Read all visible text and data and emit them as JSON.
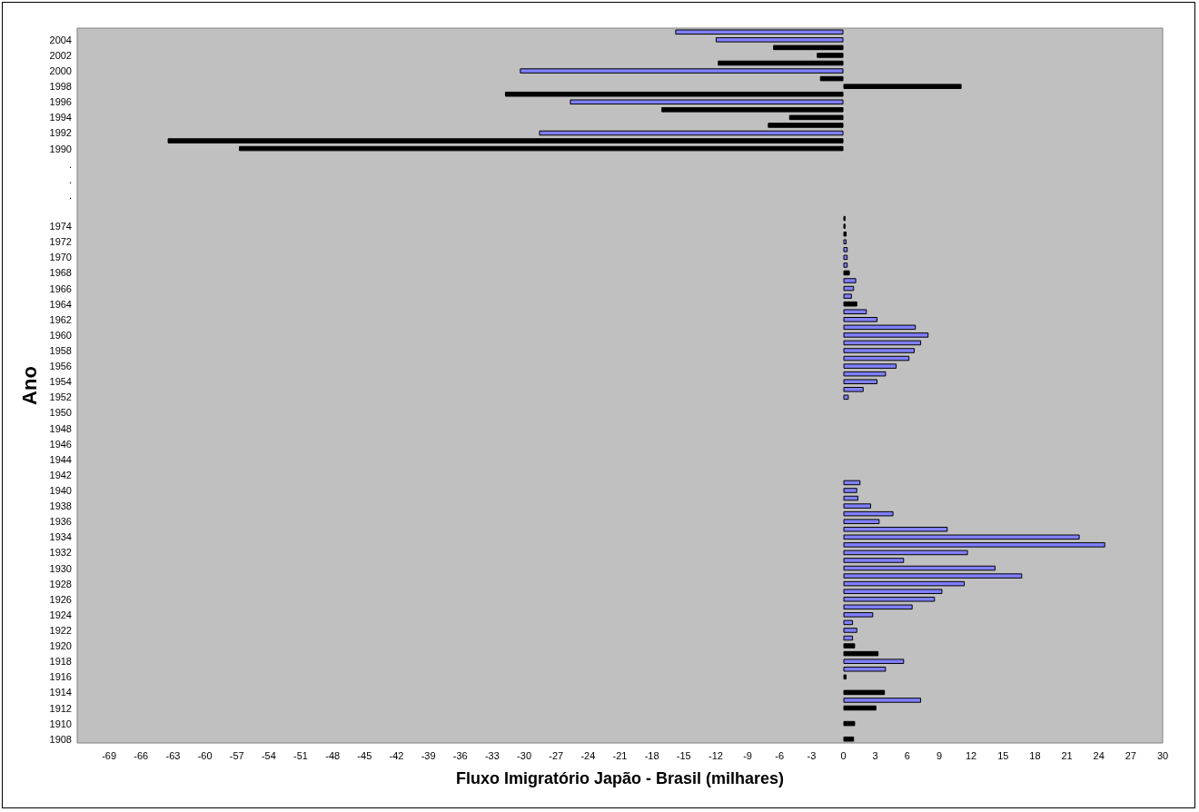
{
  "chart_data": {
    "type": "bar",
    "orientation": "horizontal",
    "xlabel": "Fluxo Imigratório Japão - Brasil (milhares)",
    "ylabel": "Ano",
    "categories": [
      null,
      "2004",
      null,
      "2002",
      null,
      "2000",
      null,
      "1998",
      null,
      "1996",
      null,
      "1994",
      null,
      "1992",
      null,
      "1990",
      null,
      ".",
      null,
      ".",
      null,
      ".",
      null,
      null,
      null,
      "1974",
      null,
      "1972",
      null,
      "1970",
      null,
      "1968",
      null,
      "1966",
      null,
      "1964",
      null,
      "1962",
      null,
      "1960",
      null,
      "1958",
      null,
      "1956",
      null,
      "1954",
      null,
      "1952",
      null,
      "1950",
      null,
      "1948",
      null,
      "1946",
      null,
      "1944",
      null,
      "1942",
      null,
      "1940",
      null,
      "1938",
      null,
      "1936",
      null,
      "1934",
      null,
      "1932",
      null,
      "1930",
      null,
      "1928",
      null,
      "1926",
      null,
      "1924",
      null,
      "1922",
      null,
      "1920",
      null,
      "1918",
      null,
      "1916",
      null,
      "1914",
      null,
      "1912",
      null,
      "1910",
      null,
      "1908"
    ],
    "values": [
      -15.8,
      -12.0,
      -6.6,
      -2.5,
      -11.8,
      -30.4,
      -2.2,
      11.1,
      -31.8,
      -25.7,
      -17.1,
      -5.1,
      -7.1,
      -28.6,
      -63.5,
      -56.8,
      null,
      null,
      null,
      null,
      null,
      null,
      null,
      null,
      0.2,
      0.2,
      0.3,
      0.3,
      0.4,
      0.4,
      0.4,
      0.6,
      1.2,
      1.0,
      0.8,
      1.3,
      2.2,
      3.2,
      6.8,
      8.0,
      7.3,
      6.7,
      6.2,
      5.0,
      4.0,
      3.2,
      1.9,
      0.5,
      null,
      null,
      null,
      null,
      null,
      null,
      null,
      null,
      null,
      null,
      1.6,
      1.3,
      1.4,
      2.6,
      4.7,
      3.4,
      9.8,
      22.2,
      24.6,
      11.7,
      5.7,
      14.3,
      16.8,
      11.4,
      9.3,
      8.6,
      6.5,
      2.8,
      0.9,
      1.3,
      0.9,
      1.1,
      3.3,
      5.7,
      4.0,
      0.3,
      null,
      3.9,
      7.3,
      3.1,
      null,
      1.1,
      null,
      1.0
    ],
    "colors": [
      "#8080ff",
      "#8080ff",
      "#000000",
      "#000000",
      "#000000",
      "#8080ff",
      "#000000",
      "#000000",
      "#000000",
      "#8080ff",
      "#000000",
      "#000000",
      "#000000",
      "#8080ff",
      "#000000",
      "#000000",
      "#000000",
      "#000000",
      "#000000",
      "#000000",
      "#000000",
      "#000000",
      "#000000",
      "#000000",
      "#000000",
      "#000000",
      "#000000",
      "#8080ff",
      "#8080ff",
      "#8080ff",
      "#8080ff",
      "#000000",
      "#8080ff",
      "#8080ff",
      "#8080ff",
      "#000000",
      "#8080ff",
      "#8080ff",
      "#8080ff",
      "#8080ff",
      "#8080ff",
      "#8080ff",
      "#8080ff",
      "#8080ff",
      "#8080ff",
      "#8080ff",
      "#8080ff",
      "#8080ff",
      "#8080ff",
      "#8080ff",
      "#8080ff",
      "#8080ff",
      "#8080ff",
      "#8080ff",
      "#8080ff",
      "#8080ff",
      "#8080ff",
      "#8080ff",
      "#8080ff",
      "#8080ff",
      "#8080ff",
      "#8080ff",
      "#8080ff",
      "#8080ff",
      "#8080ff",
      "#8080ff",
      "#8080ff",
      "#8080ff",
      "#8080ff",
      "#8080ff",
      "#8080ff",
      "#8080ff",
      "#8080ff",
      "#8080ff",
      "#8080ff",
      "#8080ff",
      "#8080ff",
      "#8080ff",
      "#8080ff",
      "#000000",
      "#000000",
      "#8080ff",
      "#8080ff",
      "#000000",
      "#8080ff",
      "#000000",
      "#8080ff",
      "#000000",
      "#000000",
      "#000000",
      "#000000",
      "#000000"
    ],
    "xlim": [
      -72,
      30
    ],
    "xticks": [
      -69,
      -66,
      -63,
      -60,
      -57,
      -54,
      -51,
      -48,
      -45,
      -42,
      -39,
      -36,
      -33,
      -30,
      -27,
      -24,
      -21,
      -18,
      -15,
      -12,
      -9,
      -6,
      -3,
      0,
      3,
      6,
      9,
      12,
      15,
      18,
      21,
      24,
      27,
      30
    ]
  }
}
